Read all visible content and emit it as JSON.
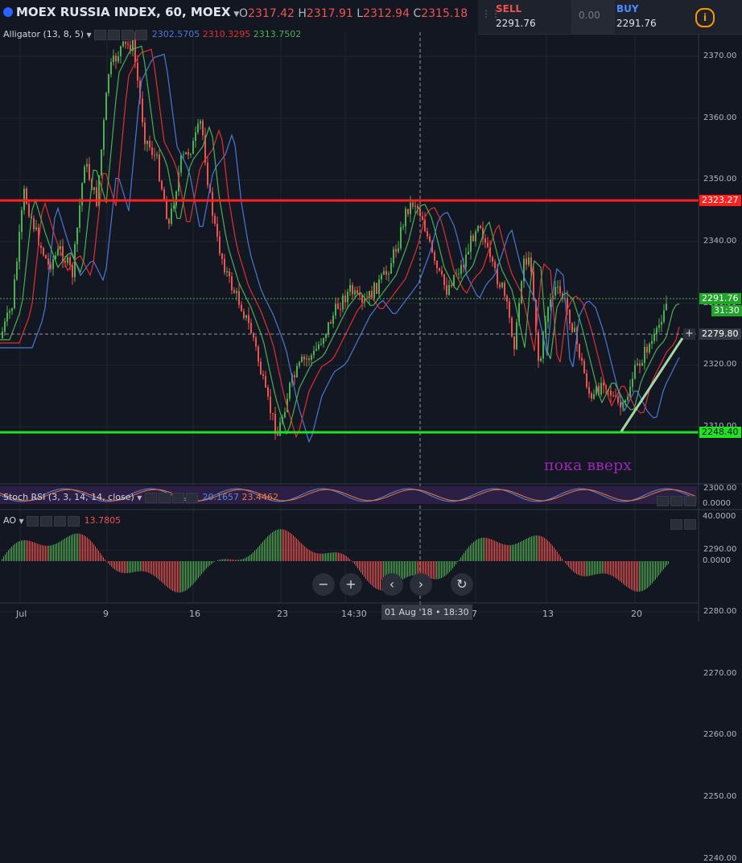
{
  "symbol": {
    "title": "MOEX RUSSIA INDEX, 60, MOEX",
    "o_key": "O",
    "o": "2317.42",
    "h_key": "H",
    "h": "2317.91",
    "l_key": "L",
    "l": "2312.94",
    "c_key": "C",
    "c": "2315.18"
  },
  "indicators": {
    "alligator": {
      "label": "Alligator (13, 8, 5)",
      "jaw": "2302.5705",
      "teeth": "2310.3295",
      "lips": "2313.7502"
    },
    "stoch": {
      "label": "Stoch RSI (3, 3, 14, 14, close)",
      "k": "20.1657",
      "d": "23.4462"
    },
    "ao": {
      "label": "AO",
      "value": "13.7805"
    }
  },
  "trade": {
    "sell_label": "SELL",
    "sell_price": "2291.76",
    "spread": "0.00",
    "buy_label": "BUY",
    "buy_price": "2291.76",
    "info_icon": "i"
  },
  "price_axis": [
    "2370.00",
    "2360.00",
    "2350.00",
    "2340.00",
    "2330.00",
    "2320.00",
    "2310.00",
    "2300.00",
    "2290.00",
    "2280.00",
    "2270.00",
    "2260.00",
    "2250.00",
    "2240.00"
  ],
  "price_markers": {
    "resistance": "2323.27",
    "last": "2291.76",
    "countdown": "31:30",
    "crosshair": "2279.80",
    "support": "2248.40"
  },
  "stoch_axis": {
    "bottom": "0.0000"
  },
  "ao_axis": {
    "top": "40.0000",
    "mid": "0.0000"
  },
  "time_axis": [
    "Jul",
    "9",
    "16",
    "23",
    "14:30",
    "7",
    "13",
    "20"
  ],
  "crosshair_time": "01 Aug '18 • 18:30",
  "annotation": "пока вверх",
  "nav": {
    "zoom_out": "−",
    "zoom_in": "+",
    "back": "‹",
    "forward": "›",
    "reset": "↻"
  },
  "colors": {
    "up": "#4caf50",
    "down": "#ef5350",
    "jaw": "#4a78d4",
    "teeth": "#e03030",
    "lips": "#4caf50",
    "resistance": "#ff2020",
    "support": "#22e022",
    "annotation": "#9c27b0"
  }
}
